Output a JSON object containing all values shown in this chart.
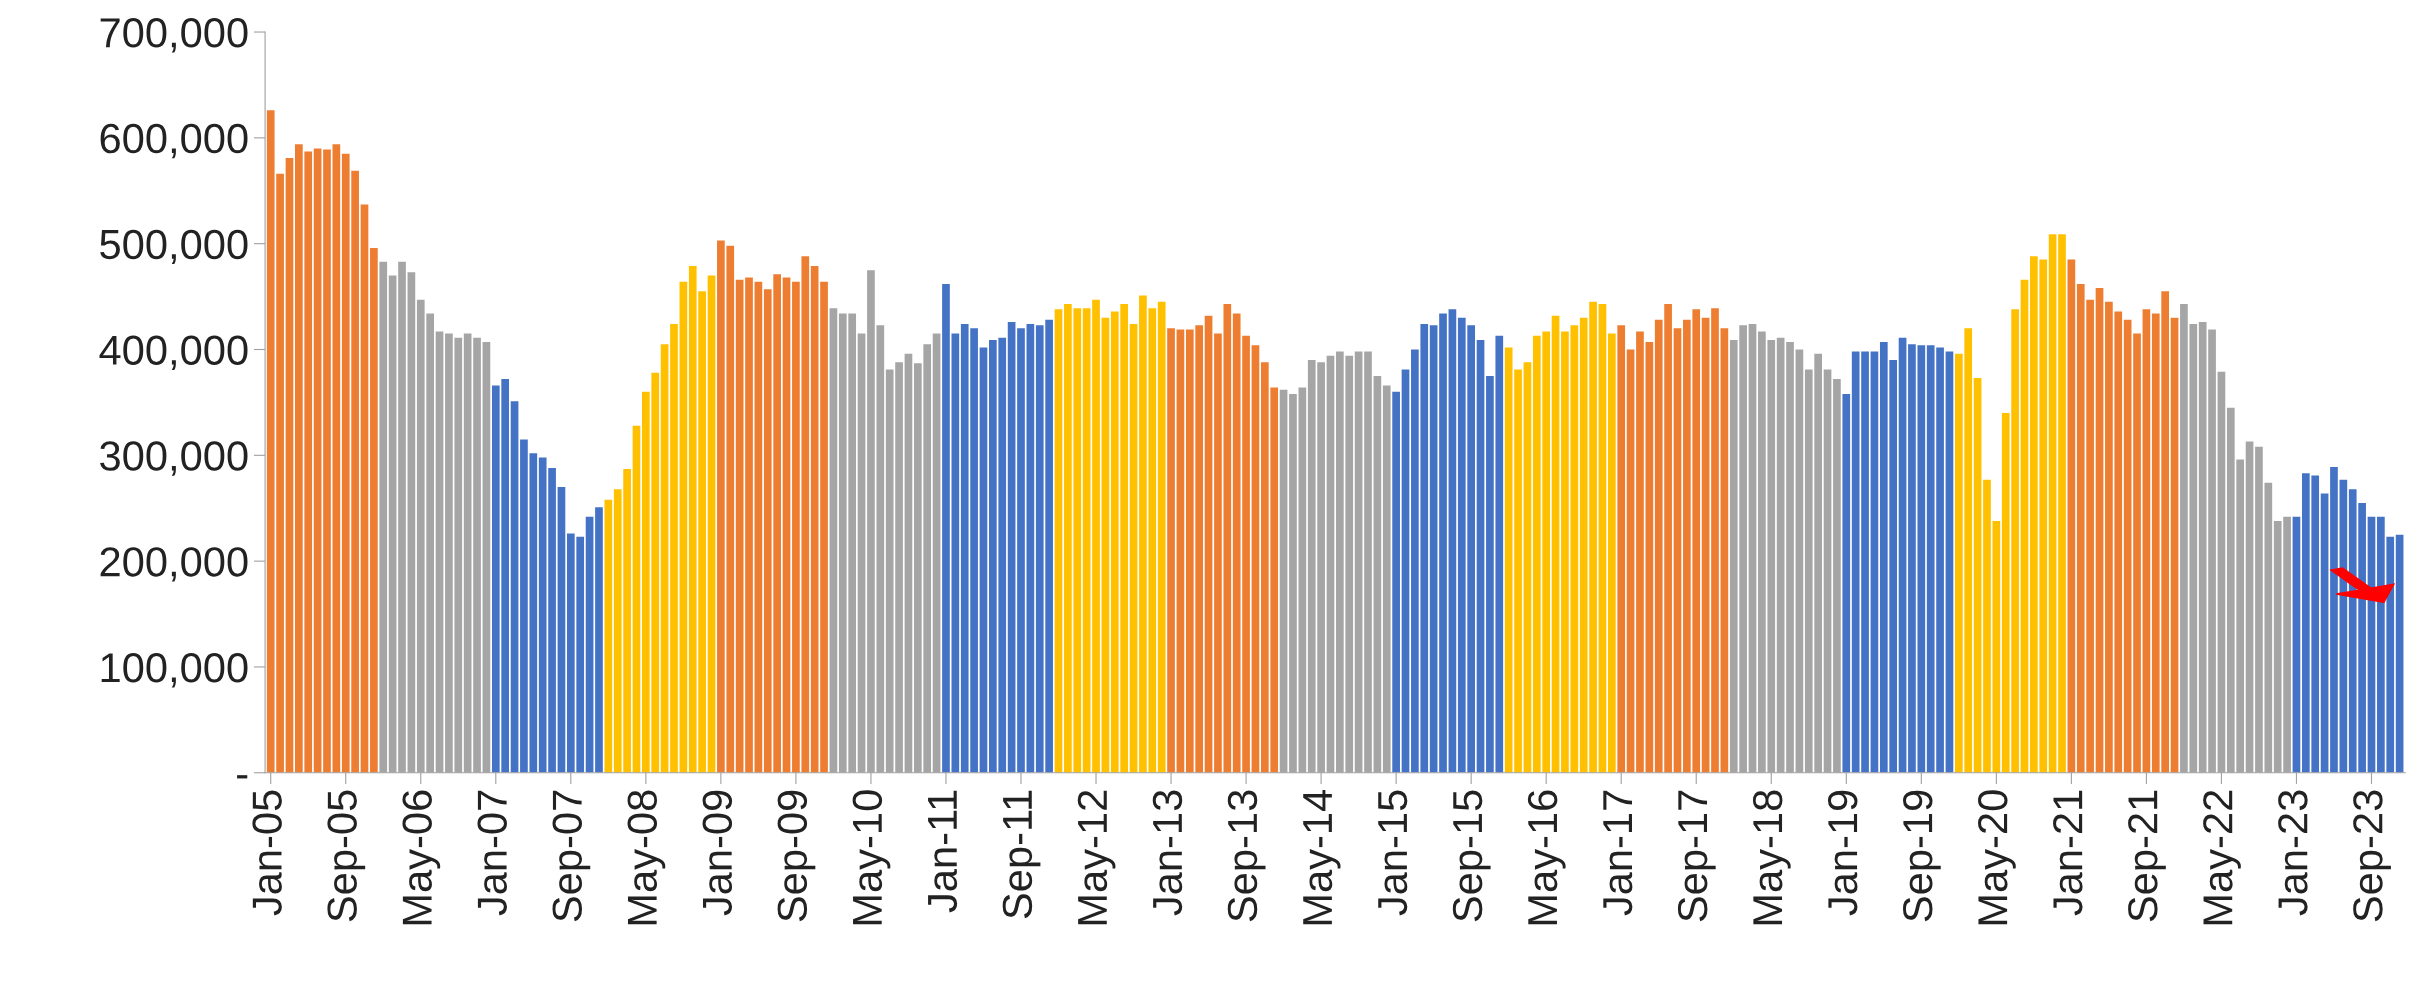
{
  "chart_data": {
    "type": "bar",
    "categories": [
      "Jan-05",
      null,
      null,
      null,
      null,
      null,
      null,
      null,
      "Sep-05",
      null,
      null,
      null,
      null,
      null,
      null,
      null,
      "May-06",
      null,
      null,
      null,
      null,
      null,
      null,
      null,
      "Jan-07",
      null,
      null,
      null,
      null,
      null,
      null,
      null,
      "Sep-07",
      null,
      null,
      null,
      null,
      null,
      null,
      null,
      "May-08",
      null,
      null,
      null,
      null,
      null,
      null,
      null,
      "Jan-09",
      null,
      null,
      null,
      null,
      null,
      null,
      null,
      "Sep-09",
      null,
      null,
      null,
      null,
      null,
      null,
      null,
      "May-10",
      null,
      null,
      null,
      null,
      null,
      null,
      null,
      "Jan-11",
      null,
      null,
      null,
      null,
      null,
      null,
      null,
      "Sep-11",
      null,
      null,
      null,
      null,
      null,
      null,
      null,
      "May-12",
      null,
      null,
      null,
      null,
      null,
      null,
      null,
      "Jan-13",
      null,
      null,
      null,
      null,
      null,
      null,
      null,
      "Sep-13",
      null,
      null,
      null,
      null,
      null,
      null,
      null,
      "May-14",
      null,
      null,
      null,
      null,
      null,
      null,
      null,
      "Jan-15",
      null,
      null,
      null,
      null,
      null,
      null,
      null,
      "Sep-15",
      null,
      null,
      null,
      null,
      null,
      null,
      null,
      "May-16",
      null,
      null,
      null,
      null,
      null,
      null,
      null,
      "Jan-17",
      null,
      null,
      null,
      null,
      null,
      null,
      null,
      "Sep-17",
      null,
      null,
      null,
      null,
      null,
      null,
      null,
      "May-18",
      null,
      null,
      null,
      null,
      null,
      null,
      null,
      "Jan-19",
      null,
      null,
      null,
      null,
      null,
      null,
      null,
      "Sep-19",
      null,
      null,
      null,
      null,
      null,
      null,
      null,
      "May-20",
      null,
      null,
      null,
      null,
      null,
      null,
      null,
      "Jan-21",
      null,
      null,
      null,
      null,
      null,
      null,
      null,
      "Sep-21",
      null,
      null,
      null,
      null,
      null,
      null,
      null,
      "May-22",
      null,
      null,
      null,
      null,
      null,
      null,
      null,
      "Jan-23",
      null,
      null,
      null,
      null,
      null,
      null,
      null,
      "Sep-23",
      null,
      null,
      null
    ],
    "values": [
      626000,
      566000,
      581000,
      594000,
      587000,
      590000,
      589000,
      594000,
      585000,
      569000,
      537000,
      496000,
      483000,
      470000,
      483000,
      473000,
      447000,
      434000,
      417000,
      415000,
      411000,
      415000,
      411000,
      407000,
      366000,
      372000,
      351000,
      315000,
      302000,
      298000,
      288000,
      270000,
      226000,
      223000,
      242000,
      251000,
      258000,
      268000,
      287000,
      328000,
      360000,
      378000,
      405000,
      424000,
      464000,
      479000,
      455000,
      470000,
      503000,
      498000,
      466000,
      468000,
      464000,
      457000,
      471000,
      468000,
      464000,
      488000,
      479000,
      464000,
      439000,
      434000,
      434000,
      415000,
      475000,
      423000,
      381000,
      388000,
      396000,
      387000,
      405000,
      415000,
      462000,
      415000,
      424000,
      420000,
      402000,
      409000,
      411000,
      426000,
      420000,
      424000,
      423000,
      428000,
      438000,
      443000,
      439000,
      439000,
      447000,
      430000,
      436000,
      443000,
      424000,
      451000,
      439000,
      445000,
      420000,
      419000,
      419000,
      423000,
      432000,
      415000,
      443000,
      434000,
      413000,
      404000,
      388000,
      364000,
      362000,
      358000,
      364000,
      390000,
      388000,
      394000,
      398000,
      394000,
      398000,
      398000,
      375000,
      366000,
      360000,
      381000,
      400000,
      424000,
      423000,
      434000,
      438000,
      430000,
      423000,
      409000,
      375000,
      413000,
      402000,
      381000,
      388000,
      413000,
      417000,
      432000,
      417000,
      423000,
      430000,
      445000,
      443000,
      415000,
      423000,
      400000,
      417000,
      407000,
      428000,
      443000,
      420000,
      428000,
      438000,
      430000,
      439000,
      420000,
      409000,
      423000,
      424000,
      417000,
      409000,
      411000,
      407000,
      400000,
      381000,
      396000,
      381000,
      372000,
      358000,
      398000,
      398000,
      398000,
      407000,
      390000,
      411000,
      405000,
      404000,
      404000,
      402000,
      398000,
      396000,
      420000,
      373000,
      277000,
      238000,
      340000,
      438000,
      466000,
      488000,
      485000,
      509000,
      509000,
      485000,
      462000,
      447000,
      458000,
      445000,
      436000,
      428000,
      415000,
      438000,
      434000,
      455000,
      430000,
      443000,
      424000,
      426000,
      419000,
      379000,
      345000,
      296000,
      313000,
      308000,
      274000,
      238000,
      242000,
      242000,
      283000,
      281000,
      264000,
      289000,
      277000,
      268000,
      255000,
      242000,
      242000,
      223000,
      225000
    ],
    "colors": [
      "#ed7d31",
      "#ed7d31",
      "#ed7d31",
      "#ed7d31",
      "#ed7d31",
      "#ed7d31",
      "#ed7d31",
      "#ed7d31",
      "#ed7d31",
      "#ed7d31",
      "#ed7d31",
      "#ed7d31",
      "#a5a5a5",
      "#a5a5a5",
      "#a5a5a5",
      "#a5a5a5",
      "#a5a5a5",
      "#a5a5a5",
      "#a5a5a5",
      "#a5a5a5",
      "#a5a5a5",
      "#a5a5a5",
      "#a5a5a5",
      "#a5a5a5",
      "#4472c4",
      "#4472c4",
      "#4472c4",
      "#4472c4",
      "#4472c4",
      "#4472c4",
      "#4472c4",
      "#4472c4",
      "#4472c4",
      "#4472c4",
      "#4472c4",
      "#4472c4",
      "#ffc000",
      "#ffc000",
      "#ffc000",
      "#ffc000",
      "#ffc000",
      "#ffc000",
      "#ffc000",
      "#ffc000",
      "#ffc000",
      "#ffc000",
      "#ffc000",
      "#ffc000",
      "#ed7d31",
      "#ed7d31",
      "#ed7d31",
      "#ed7d31",
      "#ed7d31",
      "#ed7d31",
      "#ed7d31",
      "#ed7d31",
      "#ed7d31",
      "#ed7d31",
      "#ed7d31",
      "#ed7d31",
      "#a5a5a5",
      "#a5a5a5",
      "#a5a5a5",
      "#a5a5a5",
      "#a5a5a5",
      "#a5a5a5",
      "#a5a5a5",
      "#a5a5a5",
      "#a5a5a5",
      "#a5a5a5",
      "#a5a5a5",
      "#a5a5a5",
      "#4472c4",
      "#4472c4",
      "#4472c4",
      "#4472c4",
      "#4472c4",
      "#4472c4",
      "#4472c4",
      "#4472c4",
      "#4472c4",
      "#4472c4",
      "#4472c4",
      "#4472c4",
      "#ffc000",
      "#ffc000",
      "#ffc000",
      "#ffc000",
      "#ffc000",
      "#ffc000",
      "#ffc000",
      "#ffc000",
      "#ffc000",
      "#ffc000",
      "#ffc000",
      "#ffc000",
      "#ed7d31",
      "#ed7d31",
      "#ed7d31",
      "#ed7d31",
      "#ed7d31",
      "#ed7d31",
      "#ed7d31",
      "#ed7d31",
      "#ed7d31",
      "#ed7d31",
      "#ed7d31",
      "#ed7d31",
      "#a5a5a5",
      "#a5a5a5",
      "#a5a5a5",
      "#a5a5a5",
      "#a5a5a5",
      "#a5a5a5",
      "#a5a5a5",
      "#a5a5a5",
      "#a5a5a5",
      "#a5a5a5",
      "#a5a5a5",
      "#a5a5a5",
      "#4472c4",
      "#4472c4",
      "#4472c4",
      "#4472c4",
      "#4472c4",
      "#4472c4",
      "#4472c4",
      "#4472c4",
      "#4472c4",
      "#4472c4",
      "#4472c4",
      "#4472c4",
      "#ffc000",
      "#ffc000",
      "#ffc000",
      "#ffc000",
      "#ffc000",
      "#ffc000",
      "#ffc000",
      "#ffc000",
      "#ffc000",
      "#ffc000",
      "#ffc000",
      "#ffc000",
      "#ed7d31",
      "#ed7d31",
      "#ed7d31",
      "#ed7d31",
      "#ed7d31",
      "#ed7d31",
      "#ed7d31",
      "#ed7d31",
      "#ed7d31",
      "#ed7d31",
      "#ed7d31",
      "#ed7d31",
      "#a5a5a5",
      "#a5a5a5",
      "#a5a5a5",
      "#a5a5a5",
      "#a5a5a5",
      "#a5a5a5",
      "#a5a5a5",
      "#a5a5a5",
      "#a5a5a5",
      "#a5a5a5",
      "#a5a5a5",
      "#a5a5a5",
      "#4472c4",
      "#4472c4",
      "#4472c4",
      "#4472c4",
      "#4472c4",
      "#4472c4",
      "#4472c4",
      "#4472c4",
      "#4472c4",
      "#4472c4",
      "#4472c4",
      "#4472c4",
      "#ffc000",
      "#ffc000",
      "#ffc000",
      "#ffc000",
      "#ffc000",
      "#ffc000",
      "#ffc000",
      "#ffc000",
      "#ffc000",
      "#ffc000",
      "#ffc000",
      "#ffc000",
      "#ed7d31",
      "#ed7d31",
      "#ed7d31",
      "#ed7d31",
      "#ed7d31",
      "#ed7d31",
      "#ed7d31",
      "#ed7d31",
      "#ed7d31",
      "#ed7d31",
      "#ed7d31",
      "#ed7d31",
      "#a5a5a5",
      "#a5a5a5",
      "#a5a5a5",
      "#a5a5a5",
      "#a5a5a5",
      "#a5a5a5",
      "#a5a5a5",
      "#a5a5a5",
      "#a5a5a5",
      "#a5a5a5",
      "#a5a5a5",
      "#a5a5a5",
      "#4472c4",
      "#4472c4",
      "#4472c4",
      "#4472c4",
      "#4472c4",
      "#4472c4",
      "#4472c4",
      "#4472c4",
      "#4472c4",
      "#4472c4",
      "#4472c4",
      "#4472c4"
    ],
    "ylim": [
      0,
      700000
    ],
    "yticks": [
      {
        "value": 0,
        "label": "-"
      },
      {
        "value": 100000,
        "label": "100,000"
      },
      {
        "value": 200000,
        "label": "200,000"
      },
      {
        "value": 300000,
        "label": "300,000"
      },
      {
        "value": 400000,
        "label": "400,000"
      },
      {
        "value": 500000,
        "label": "500,000"
      },
      {
        "value": 600000,
        "label": "600,000"
      },
      {
        "value": 700000,
        "label": "700,000"
      }
    ],
    "grid": false,
    "legend": false
  }
}
